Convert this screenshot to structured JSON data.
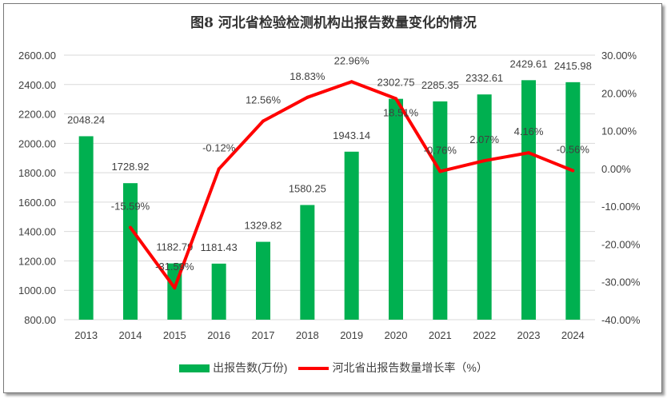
{
  "chart_data": {
    "type": "bar+line",
    "title": "图8  河北省检验检测机构出报告数量变化的情况",
    "categories": [
      "2013",
      "2014",
      "2015",
      "2016",
      "2017",
      "2018",
      "2019",
      "2020",
      "2021",
      "2022",
      "2023",
      "2024"
    ],
    "series": [
      {
        "name": "出报告数(万份)",
        "type": "bar",
        "axis": "left",
        "color": "#00b050",
        "values": [
          2048.24,
          1728.92,
          1182.79,
          1181.43,
          1329.82,
          1580.25,
          1943.14,
          2302.75,
          2285.35,
          2332.61,
          2429.61,
          2415.98
        ],
        "labels": [
          "2048.24",
          "1728.92",
          "1182.79",
          "1181.43",
          "1329.82",
          "1580.25",
          "1943.14",
          "2302.75",
          "2285.35",
          "2332.61",
          "2429.61",
          "2415.98"
        ]
      },
      {
        "name": "河北省出报告数量增长率（%）",
        "type": "line",
        "axis": "right",
        "color": "#ff0000",
        "values": [
          null,
          -15.59,
          -31.59,
          -0.12,
          12.56,
          18.83,
          22.96,
          18.51,
          -0.76,
          2.07,
          4.16,
          -0.56
        ],
        "labels": [
          "",
          "-15.59%",
          "-31.59%",
          "-0.12%",
          "12.56%",
          "18.83%",
          "22.96%",
          "18.51%",
          "-0.76%",
          "2.07%",
          "4.16%",
          "-0.56%"
        ]
      }
    ],
    "ylim_left": [
      800,
      2600
    ],
    "yticks_left": [
      "800.00",
      "1000.00",
      "1200.00",
      "1400.00",
      "1600.00",
      "1800.00",
      "2000.00",
      "2200.00",
      "2400.00",
      "2600.00"
    ],
    "ylim_right": [
      -40,
      30
    ],
    "yticks_right": [
      "-40.00%",
      "-30.00%",
      "-20.00%",
      "-10.00%",
      "0.00%",
      "10.00%",
      "20.00%",
      "30.00%"
    ],
    "grid": true,
    "legend": "bottom"
  }
}
